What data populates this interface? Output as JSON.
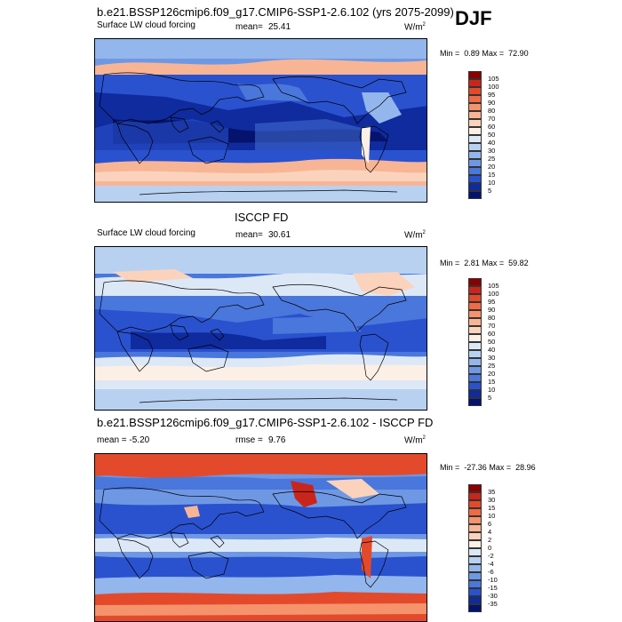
{
  "season": "DJF",
  "panels": [
    {
      "title": "b.e21.BSSP126cmip6.f09_g17.CMIP6-SSP1-2.6.102 (yrs 2075-2099)",
      "left_label": "Surface LW cloud forcing",
      "stat_label": "mean=",
      "stat_value": "25.41",
      "units": "W/m",
      "units_sup": "2",
      "min_label": "Min =",
      "min_value": "0.89",
      "max_label": "Max =",
      "max_value": "72.90",
      "colorbar_labels": [
        "105",
        "100",
        "95",
        "90",
        "80",
        "70",
        "60",
        "50",
        "40",
        "30",
        "25",
        "20",
        "15",
        "10",
        "5"
      ],
      "palette": "positive"
    },
    {
      "title": "ISCCP FD",
      "left_label": "Surface LW cloud forcing",
      "stat_label": "mean=",
      "stat_value": "30.61",
      "units": "W/m",
      "units_sup": "2",
      "min_label": "Min =",
      "min_value": "2.81",
      "max_label": "Max =",
      "max_value": "59.82",
      "colorbar_labels": [
        "105",
        "100",
        "95",
        "90",
        "80",
        "70",
        "60",
        "50",
        "40",
        "30",
        "25",
        "20",
        "15",
        "10",
        "5"
      ],
      "palette": "positive"
    },
    {
      "title": "b.e21.BSSP126cmip6.f09_g17.CMIP6-SSP1-2.6.102 - ISCCP FD",
      "left_label": "mean =  -5.20",
      "stat_label": "rmse =",
      "stat_value": "9.76",
      "units": "W/m",
      "units_sup": "2",
      "min_label": "Min =",
      "min_value": "-27.36",
      "max_label": "Max =",
      "max_value": "28.96",
      "colorbar_labels": [
        "35",
        "30",
        "15",
        "10",
        "6",
        "4",
        "2",
        "0",
        "-2",
        "-4",
        "-6",
        "-10",
        "-15",
        "-30",
        "-35"
      ],
      "palette": "diverging"
    }
  ],
  "colors": {
    "positive_scale": [
      "#8b0000",
      "#c8261c",
      "#e34a2b",
      "#ef6a45",
      "#f5936c",
      "#f8b595",
      "#fbd3bd",
      "#fbefe6",
      "#dde8f7",
      "#b8d1f1",
      "#93b6ec",
      "#6f98e4",
      "#4a77db",
      "#2a52cf",
      "#0f2b9d",
      "#05136e"
    ],
    "diverging_scale": [
      "#8b0000",
      "#c8261c",
      "#e34a2b",
      "#ef6a45",
      "#f5936c",
      "#f8b595",
      "#fbd3bd",
      "#fbefe6",
      "#dde8f7",
      "#b8d1f1",
      "#93b6ec",
      "#6f98e4",
      "#4a77db",
      "#2a52cf",
      "#0f2b9d",
      "#05136e"
    ]
  }
}
